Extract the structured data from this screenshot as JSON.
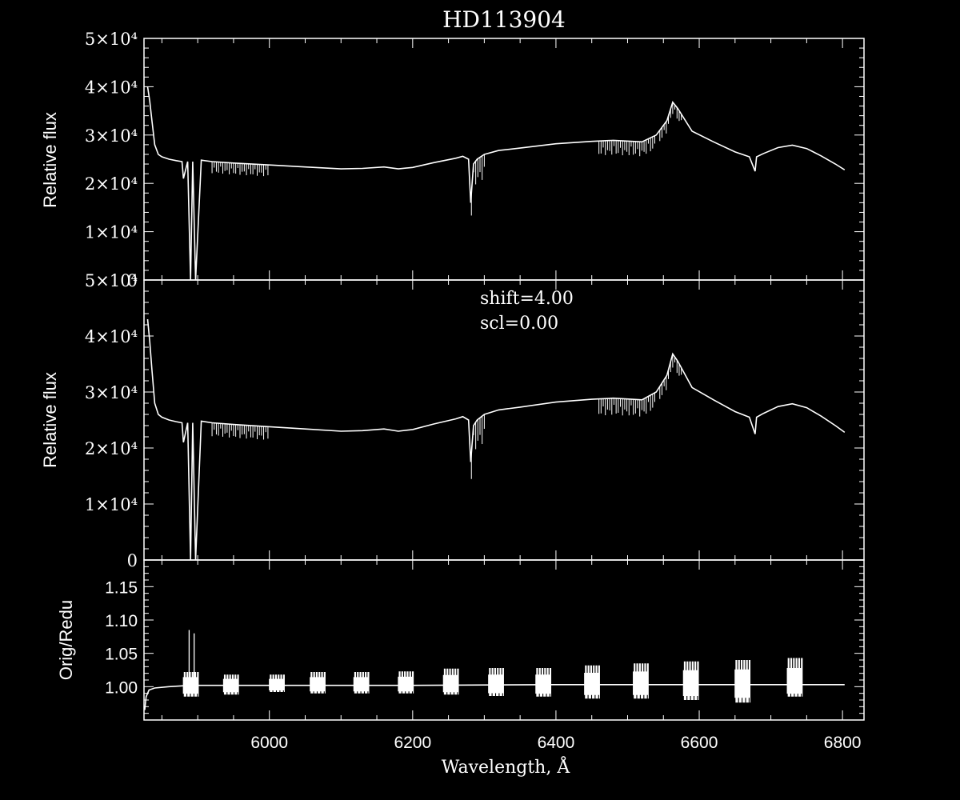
{
  "chart_data": [
    {
      "type": "line",
      "title": "HD113904",
      "ylabel": "Relative flux",
      "xlim": [
        5825,
        6830
      ],
      "ylim": [
        0,
        50000
      ],
      "ytick_labels": [
        "0",
        "1×10⁴",
        "2×10⁴",
        "3×10⁴",
        "4×10⁴",
        "5×10⁴"
      ],
      "grid": false,
      "series": [
        {
          "x": [
            5830,
            5833,
            5836,
            5840,
            5845,
            5850,
            5860,
            5870,
            5878,
            5880,
            5886,
            5890,
            5893,
            5897,
            5905,
            5920,
            5950,
            6000,
            6050,
            6100,
            6130,
            6160,
            6180,
            6200,
            6230,
            6260,
            6270,
            6278,
            6281,
            6285,
            6290,
            6300,
            6320,
            6350,
            6400,
            6450,
            6480,
            6520,
            6540,
            6555,
            6563,
            6570,
            6590,
            6620,
            6650,
            6670,
            6678,
            6680,
            6690,
            6710,
            6730,
            6750,
            6770,
            6790,
            6803
          ],
          "y": [
            40000,
            37000,
            33000,
            28000,
            26000,
            25500,
            25000,
            24700,
            24500,
            21000,
            24500,
            0,
            24500,
            0,
            24800,
            24500,
            24200,
            23800,
            23400,
            23000,
            23100,
            23400,
            23000,
            23300,
            24300,
            25200,
            25600,
            25000,
            16000,
            24000,
            25000,
            26000,
            26800,
            27300,
            28200,
            28700,
            28900,
            28600,
            30000,
            33000,
            36800,
            35500,
            30800,
            28600,
            26500,
            25500,
            22500,
            25500,
            26200,
            27400,
            27900,
            27200,
            25700,
            24000,
            22800
          ]
        }
      ]
    },
    {
      "type": "line",
      "ylabel": "Relative flux",
      "xlim": [
        5825,
        6830
      ],
      "ylim": [
        0,
        50000
      ],
      "ytick_labels": [
        "0",
        "1×10⁴",
        "2×10⁴",
        "3×10⁴",
        "4×10⁴",
        "5×10⁴"
      ],
      "grid": false,
      "annotations": [
        "shift=4.00",
        "scl=0.00"
      ],
      "series": [
        {
          "x": [
            5830,
            5833,
            5836,
            5840,
            5845,
            5850,
            5860,
            5870,
            5878,
            5880,
            5886,
            5890,
            5893,
            5897,
            5905,
            5920,
            5950,
            6000,
            6050,
            6100,
            6130,
            6160,
            6180,
            6200,
            6230,
            6260,
            6270,
            6278,
            6281,
            6285,
            6290,
            6300,
            6320,
            6350,
            6400,
            6450,
            6480,
            6520,
            6540,
            6555,
            6563,
            6570,
            6590,
            6620,
            6650,
            6670,
            6678,
            6680,
            6690,
            6710,
            6730,
            6750,
            6770,
            6790,
            6803
          ],
          "y": [
            43000,
            39000,
            34000,
            28000,
            26000,
            25500,
            25000,
            24700,
            24500,
            21000,
            24500,
            0,
            24500,
            0,
            24800,
            24500,
            24200,
            23800,
            23400,
            23000,
            23100,
            23400,
            23000,
            23300,
            24300,
            25200,
            25600,
            25000,
            17500,
            24000,
            25000,
            26000,
            26800,
            27300,
            28200,
            28700,
            28900,
            28600,
            30000,
            33000,
            36800,
            35500,
            30800,
            28600,
            26500,
            25500,
            22500,
            25500,
            26200,
            27400,
            27900,
            27200,
            25700,
            24000,
            22800
          ]
        }
      ]
    },
    {
      "type": "line",
      "xlabel": "Wavelength, Å",
      "ylabel": "Orig/Redu",
      "xlim": [
        5825,
        6830
      ],
      "ylim": [
        0.95,
        1.19
      ],
      "ytick_labels": [
        "1.00",
        "1.05",
        "1.10",
        "1.15"
      ],
      "xtick_labels": [
        "6000",
        "6200",
        "6400",
        "6600",
        "6800"
      ],
      "grid": false,
      "baseline": {
        "x": [
          5826,
          5828,
          5832,
          5840,
          5860,
          5890,
          6000,
          6200,
          6400,
          6600,
          6803
        ],
        "y": [
          0.965,
          0.985,
          0.995,
          0.998,
          1.0,
          1.002,
          1.002,
          1.002,
          1.003,
          1.003,
          1.003
        ]
      },
      "bursts": [
        {
          "x": 5890,
          "low": 0.985,
          "high": 1.022
        },
        {
          "x": 5946,
          "low": 0.988,
          "high": 1.018
        },
        {
          "x": 6010,
          "low": 0.992,
          "high": 1.018
        },
        {
          "x": 6067,
          "low": 0.99,
          "high": 1.022
        },
        {
          "x": 6128,
          "low": 0.99,
          "high": 1.022
        },
        {
          "x": 6190,
          "low": 0.99,
          "high": 1.023
        },
        {
          "x": 6253,
          "low": 0.988,
          "high": 1.027
        },
        {
          "x": 6316,
          "low": 0.986,
          "high": 1.028
        },
        {
          "x": 6382,
          "low": 0.985,
          "high": 1.028
        },
        {
          "x": 6450,
          "low": 0.982,
          "high": 1.032
        },
        {
          "x": 6518,
          "low": 0.982,
          "high": 1.035
        },
        {
          "x": 6588,
          "low": 0.98,
          "high": 1.038
        },
        {
          "x": 6660,
          "low": 0.976,
          "high": 1.04
        },
        {
          "x": 6733,
          "low": 0.985,
          "high": 1.043
        }
      ],
      "spikes": [
        {
          "x": 5888,
          "y": 1.085
        },
        {
          "x": 5895,
          "y": 1.08
        }
      ]
    }
  ]
}
